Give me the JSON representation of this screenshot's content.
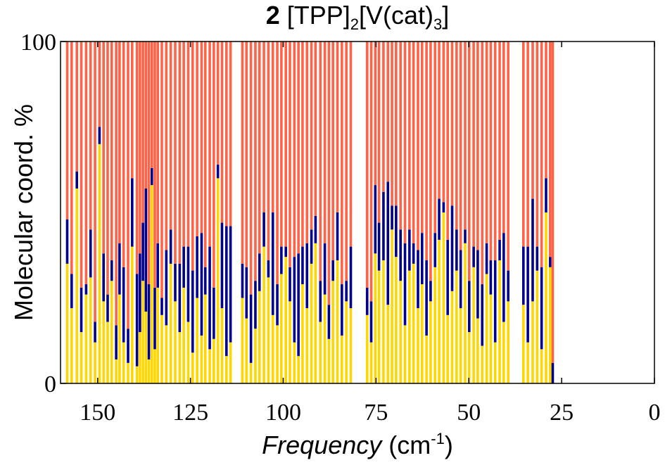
{
  "chart_data": {
    "type": "stacked_bar",
    "title": [
      {
        "text": "2",
        "style": "bold"
      },
      {
        "text": " [TPP]"
      },
      {
        "text": "2",
        "style": "sub"
      },
      {
        "text": "[V(cat)"
      },
      {
        "text": "3",
        "style": "sub"
      },
      {
        "text": "]"
      }
    ],
    "xlabel": [
      {
        "text": "Frequency",
        "style": "italic"
      },
      {
        "text": " (cm"
      },
      {
        "text": "-1",
        "style": "sup"
      },
      {
        "text": ")"
      }
    ],
    "ylabel": "Molecular coord. %",
    "xlim": [
      160,
      0
    ],
    "ylim": [
      0,
      100
    ],
    "xticks": [
      150,
      125,
      100,
      75,
      50,
      25,
      0
    ],
    "yticks": [
      0,
      100
    ],
    "x": [
      158.2,
      157.0,
      155.6,
      154.4,
      153.1,
      151.9,
      150.7,
      149.5,
      148.4,
      147.3,
      146.2,
      145.0,
      144.1,
      143.0,
      141.8,
      140.7,
      139.4,
      138.6,
      137.8,
      137.0,
      136.2,
      135.4,
      134.6,
      133.8,
      132.7,
      131.5,
      130.3,
      129.1,
      127.9,
      126.8,
      125.6,
      124.4,
      123.2,
      122.0,
      121.0,
      119.8,
      118.7,
      117.6,
      116.5,
      115.3,
      114.2,
      111.0,
      109.9,
      108.7,
      107.5,
      106.4,
      105.2,
      104.0,
      102.8,
      101.6,
      100.5,
      99.3,
      98.2,
      97.0,
      95.9,
      94.8,
      93.6,
      92.4,
      91.3,
      90.0,
      88.8,
      87.7,
      86.6,
      85.4,
      84.2,
      83.0,
      81.8,
      77.4,
      76.3,
      75.2,
      74.2,
      73.0,
      71.8,
      70.7,
      69.6,
      68.4,
      67.2,
      66.0,
      64.9,
      63.7,
      62.6,
      61.4,
      60.3,
      59.1,
      58.0,
      56.8,
      55.7,
      54.5,
      53.3,
      52.2,
      51.0,
      49.9,
      48.7,
      47.6,
      46.4,
      45.2,
      44.1,
      42.9,
      41.7,
      40.6,
      39.4,
      35.3,
      34.1,
      32.8,
      31.6,
      30.4,
      29.2,
      28.1,
      27.4
    ],
    "series": [
      {
        "color": "#ffd700",
        "values": [
          35,
          22,
          57,
          15,
          26,
          31,
          12,
          70,
          24,
          18,
          30,
          7,
          26,
          12,
          6,
          40,
          5,
          15,
          30,
          21,
          7,
          58,
          10,
          28,
          20,
          17,
          35,
          24,
          15,
          28,
          18,
          9,
          25,
          14,
          26,
          10,
          13,
          60,
          22,
          8,
          12,
          25,
          19,
          6,
          16,
          27,
          40,
          31,
          20,
          17,
          32,
          37,
          24,
          12,
          8,
          29,
          22,
          35,
          41,
          18,
          26,
          13,
          30,
          36,
          14,
          24,
          22,
          20,
          12,
          38,
          33,
          36,
          23,
          45,
          37,
          30,
          17,
          33,
          35,
          22,
          29,
          14,
          24,
          34,
          42,
          50,
          20,
          27,
          33,
          22,
          41,
          15,
          34,
          19,
          11,
          32,
          26,
          12,
          36,
          18,
          24,
          23,
          12,
          24,
          33,
          10,
          50,
          34,
          0
        ]
      },
      {
        "color": "#00008b",
        "values": [
          13,
          10,
          5,
          13,
          3,
          14,
          6,
          5,
          14,
          8,
          6,
          10,
          15,
          22,
          10,
          20,
          27,
          23,
          17,
          36,
          22,
          5,
          18,
          13,
          5,
          22,
          10,
          11,
          20,
          12,
          22,
          24,
          18,
          30,
          8,
          30,
          15,
          4,
          25,
          38,
          34,
          10,
          15,
          20,
          14,
          11,
          10,
          5,
          30,
          12,
          8,
          3,
          10,
          25,
          30,
          11,
          19,
          10,
          8,
          12,
          15,
          10,
          6,
          14,
          15,
          6,
          18,
          8,
          12,
          20,
          14,
          20,
          36,
          7,
          15,
          15,
          24,
          12,
          6,
          17,
          15,
          22,
          6,
          10,
          12,
          3,
          22,
          25,
          12,
          17,
          4,
          15,
          6,
          20,
          18,
          9,
          10,
          24,
          6,
          26,
          9,
          17,
          28,
          30,
          7,
          24,
          10,
          3,
          6
        ]
      },
      {
        "color": "#ff6347",
        "values": [
          52,
          68,
          38,
          72,
          71,
          55,
          82,
          25,
          62,
          74,
          64,
          83,
          59,
          66,
          84,
          40,
          68,
          62,
          53,
          43,
          71,
          37,
          72,
          59,
          75,
          61,
          55,
          65,
          65,
          60,
          60,
          67,
          57,
          56,
          66,
          60,
          72,
          36,
          53,
          54,
          54,
          65,
          66,
          74,
          70,
          62,
          50,
          64,
          50,
          71,
          60,
          60,
          66,
          63,
          62,
          60,
          59,
          55,
          51,
          70,
          59,
          77,
          64,
          50,
          71,
          70,
          60,
          72,
          76,
          42,
          53,
          44,
          41,
          48,
          48,
          55,
          59,
          55,
          59,
          61,
          56,
          64,
          70,
          56,
          46,
          47,
          58,
          48,
          55,
          61,
          55,
          70,
          60,
          61,
          71,
          59,
          64,
          64,
          58,
          56,
          67,
          60,
          60,
          46,
          60,
          66,
          40,
          63,
          94
        ]
      }
    ]
  }
}
